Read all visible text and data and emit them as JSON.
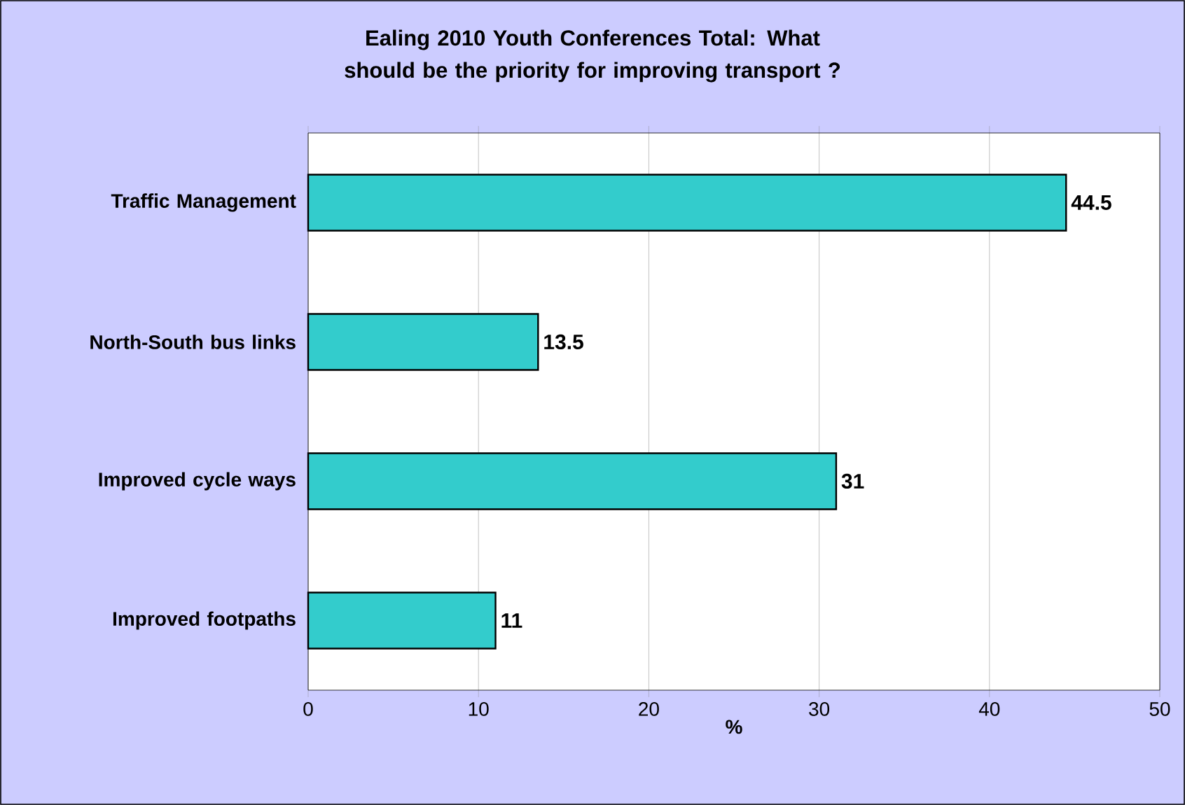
{
  "chart_data": {
    "type": "bar",
    "orientation": "horizontal",
    "title": "Ealing 2010 Youth Conferences Total: What should be the priority for improving transport ?",
    "categories": [
      "Traffic Management",
      "North-South bus links",
      "Improved cycle ways",
      "Improved footpaths"
    ],
    "values": [
      44.5,
      13.5,
      31,
      11
    ],
    "color": "#33cccc",
    "data_labels": true,
    "xlabel": "%",
    "xlim": [
      0,
      50
    ],
    "xticks": [
      0,
      10,
      20,
      30,
      40,
      50
    ],
    "grid": "x"
  }
}
